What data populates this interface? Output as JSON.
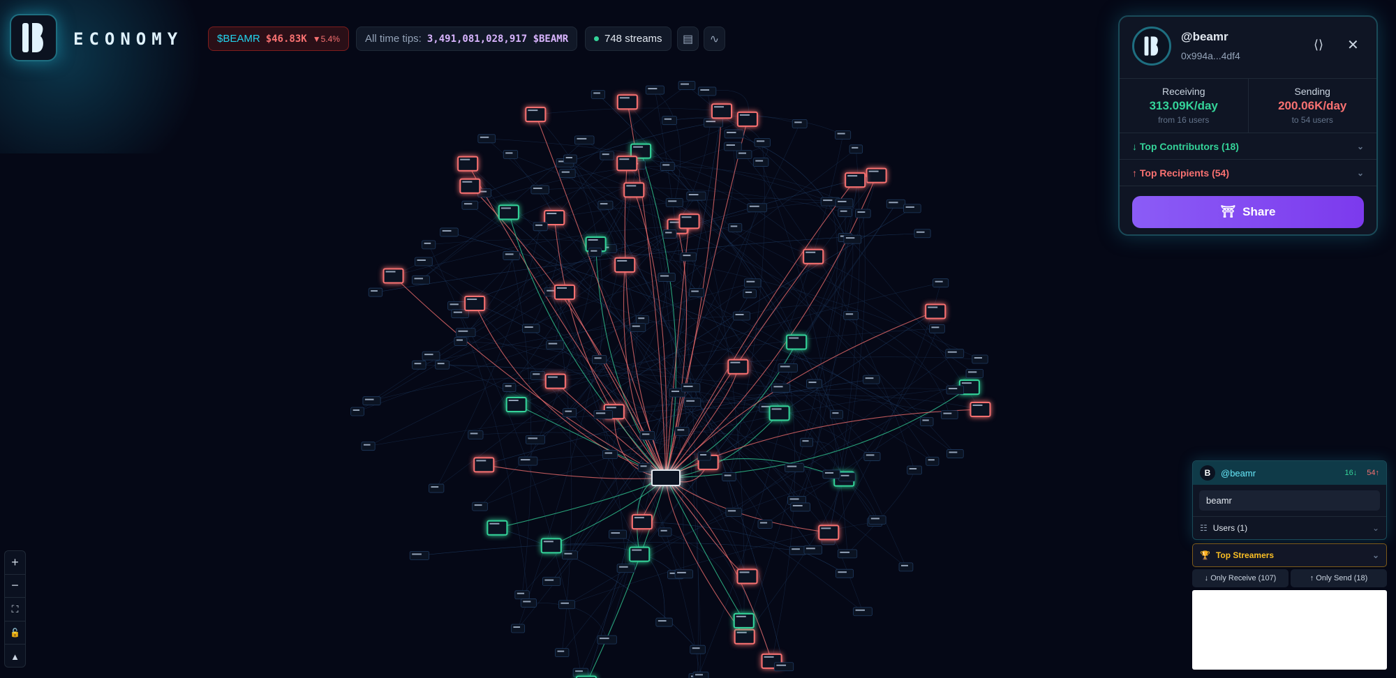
{
  "header": {
    "brand": "ECONOMY",
    "token": "$BEAMR",
    "price": "$46.83K",
    "change": "▼5.4%",
    "tips_label": "All time tips:",
    "tips_value": "3,491,081,028,917 $BEAMR",
    "streams": "748 streams",
    "icons": [
      "document-icon",
      "activity-icon"
    ]
  },
  "profile": {
    "handle": "@beamr",
    "address": "0x994a...4df4",
    "receiving_label": "Receiving",
    "receiving_value": "313.09K/day",
    "receiving_sub": "from 16 users",
    "sending_label": "Sending",
    "sending_value": "200.06K/day",
    "sending_sub": "to 54 users",
    "contributors": "↓ Top Contributors (18)",
    "recipients": "↑ Top Recipients (54)",
    "share": "Share"
  },
  "search": {
    "handle": "@beamr",
    "in_count": "16↓",
    "out_count": "54↑",
    "query": "beamr",
    "users": "Users (1)",
    "top_streamers": "Top Streamers",
    "only_receive": "↓ Only Receive (107)",
    "only_send": "↑ Only Send (18)"
  },
  "colors": {
    "receive": "#34d399",
    "send": "#f87171",
    "accent": "#8b5cf6",
    "gold": "#fbbf24"
  },
  "zoom_controls": [
    "zoom-in-icon",
    "zoom-out-icon",
    "fit-view-icon",
    "lock-icon",
    "bell-icon"
  ]
}
